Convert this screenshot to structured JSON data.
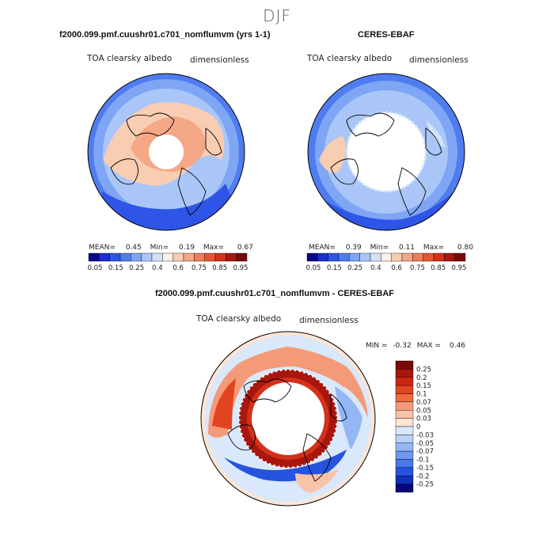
{
  "season": "DJF",
  "panels": [
    {
      "title": "f2000.099.pmf.cuushr01.c701_nomflumvm (yrs 1-1)",
      "var_label": "TOA clearsky albedo",
      "units": "dimensionless",
      "stats": {
        "mean_label": "MEAN=",
        "mean": "0.45",
        "min_label": "Min=",
        "min": "0.19",
        "max_label": "Max=",
        "max": "0.67"
      }
    },
    {
      "title": "CERES-EBAF",
      "var_label": "TOA clearsky albedo",
      "units": "dimensionless",
      "stats": {
        "mean_label": "MEAN=",
        "mean": "0.39",
        "min_label": "Min=",
        "min": "0.11",
        "max_label": "Max=",
        "max": "0.80"
      }
    },
    {
      "title": "f2000.099.pmf.cuushr01.c701_nomflumvm - CERES-EBAF",
      "var_label": "TOA clearsky albedo",
      "units": "dimensionless",
      "stats": {
        "min_label": "MIN =",
        "min": "-0.32",
        "max_label": "MAX =",
        "max": "0.46"
      }
    }
  ],
  "colorbar_abs": {
    "labels": [
      "0.05",
      "0.15",
      "0.25",
      "0.4",
      "0.6",
      "0.75",
      "0.85",
      "0.95"
    ],
    "colors": [
      "#08088a",
      "#1a2fcf",
      "#2f55e8",
      "#4f7df0",
      "#7fa6f5",
      "#aac6f8",
      "#d2e2fb",
      "#fdf0e6",
      "#f8cdb2",
      "#f4a886",
      "#ee7d57",
      "#e65530",
      "#d4311a",
      "#a8160e",
      "#7a0808"
    ]
  },
  "colorbar_diff": {
    "labels": [
      "0.25",
      "0.2",
      "0.15",
      "0.1",
      "0.07",
      "0.05",
      "0.03",
      "0",
      "-0.03",
      "-0.05",
      "-0.07",
      "-0.1",
      "-0.15",
      "-0.2",
      "-0.25"
    ],
    "colors": [
      "#7a0808",
      "#a8160e",
      "#c92513",
      "#e24420",
      "#ef6a3c",
      "#f59a78",
      "#f9c3a8",
      "#fbe5d6",
      "#d9e8fb",
      "#b9d2f8",
      "#93b6f5",
      "#6e97f0",
      "#4a77ea",
      "#2653de",
      "#0f30b8",
      "#06077a"
    ]
  }
}
